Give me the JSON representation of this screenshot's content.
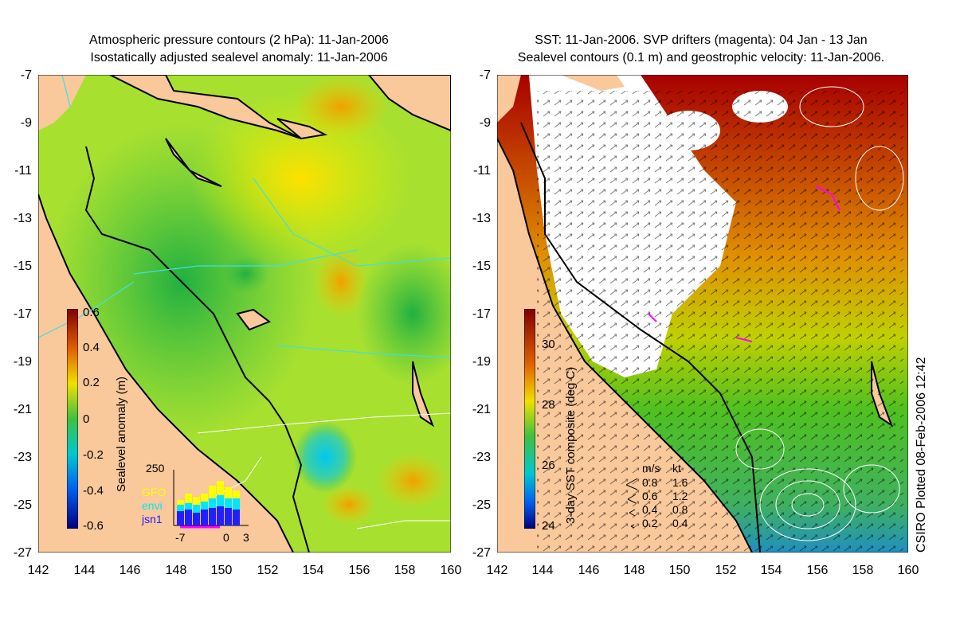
{
  "left_panel": {
    "title_line1": "Atmospheric pressure contours (2 hPa): 11-Jan-2006",
    "title_line2": "Isostatically adjusted sealevel anomaly: 11-Jan-2006",
    "colorbar_label": "Sealevel anomaly (m)",
    "colorbar_ticks": [
      "0.6",
      "0.4",
      "0.2",
      "0",
      "-0.2",
      "-0.4",
      "-0.6"
    ],
    "inset": {
      "ymax_label": "250",
      "series": [
        "GFO",
        "envi",
        "jsn1"
      ],
      "series_colors": [
        "#ffff00",
        "#00e5ff",
        "#2020ff"
      ],
      "xtick_labels": [
        "-7",
        "0",
        "3"
      ]
    }
  },
  "right_panel": {
    "title_line1": "SST: 11-Jan-2006. SVP drifters (magenta): 04 Jan - 13 Jan",
    "title_line2": "Sealevel contours (0.1 m) and geostrophic velocity: 11-Jan-2006.",
    "colorbar_label": "3-day SST composite (deg C)",
    "colorbar_ticks": [
      "30",
      "28",
      "26",
      "24"
    ],
    "vector_key": {
      "header_ms": "m/s",
      "header_kt": "kt",
      "rows": [
        {
          "ms": "0.8",
          "kt": "1.6"
        },
        {
          "ms": "0.6",
          "kt": "1.2"
        },
        {
          "ms": "0.4",
          "kt": "0.8"
        },
        {
          "ms": "0.2",
          "kt": "0.4"
        }
      ]
    }
  },
  "axes": {
    "y_ticks": [
      "-7",
      "-9",
      "-11",
      "-13",
      "-15",
      "-17",
      "-19",
      "-21",
      "-23",
      "-25",
      "-27"
    ],
    "x_ticks": [
      "142",
      "144",
      "146",
      "148",
      "150",
      "152",
      "154",
      "156",
      "158",
      "160"
    ]
  },
  "footer_note": "CSIRO Plotted 08-Feb-2006 12:42",
  "colors": {
    "land": "#f9c89b",
    "sla_low": "#0000aa",
    "sla_high": "#b00000",
    "sst_warm": "#a80000",
    "drifter": "#ff00ff"
  }
}
